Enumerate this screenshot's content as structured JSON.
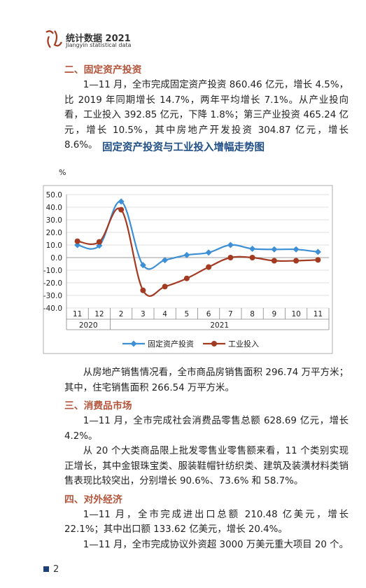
{
  "header": {
    "title": "统计数据 2021",
    "subtitle": "Jiangyin statistical data"
  },
  "sections": [
    {
      "heading": "二、固定资产投资",
      "paragraphs": [
        "1—11 月，全市完成固定资产投资 860.46 亿元，增长 4.5%，比 2019 年同期增长 14.7%，两年平均增长 7.1%。从产业投向看，工业投入 392.85 亿元，下降 1.8%；第三产业投资 465.24 亿元，增长 10.5%，其中房地产开发投资 304.87 亿元，增长 8.6%。"
      ]
    }
  ],
  "chart_data": {
    "type": "line",
    "title": "固定资产投资与工业投入增幅走势图",
    "y_label": "%",
    "categories": [
      "11",
      "12",
      "2",
      "3",
      "4",
      "5",
      "6",
      "7",
      "8",
      "9",
      "10",
      "11"
    ],
    "category_groups": [
      "2020",
      "2021"
    ],
    "series": [
      {
        "name": "固定资产投资",
        "color": "#3d8fd6",
        "marker": "diamond",
        "values": [
          10,
          9.5,
          44.5,
          -6,
          -2,
          2,
          4,
          10,
          7,
          6.5,
          6.5,
          4.5
        ]
      },
      {
        "name": "工业投入",
        "color": "#a33b22",
        "marker": "circle",
        "values": [
          13,
          12.5,
          38,
          -26,
          -23,
          -16.5,
          -7.5,
          0,
          0,
          -2.5,
          -2.5,
          -1.8
        ]
      }
    ],
    "ylim": [
      -40,
      50
    ],
    "yticks": [
      {
        "value": -40,
        "label": "-40.0"
      },
      {
        "value": -30,
        "label": "-30.0"
      },
      {
        "value": -20,
        "label": "-20.0"
      },
      {
        "value": -10,
        "label": "-10.0"
      },
      {
        "value": 0,
        "label": "0.0"
      },
      {
        "value": 10,
        "label": "10.0"
      },
      {
        "value": 20,
        "label": "20.0"
      },
      {
        "value": 30,
        "label": "30.0"
      },
      {
        "value": 40,
        "label": "40.0"
      },
      {
        "value": 50,
        "label": "50.0"
      }
    ],
    "grid": true,
    "legend": "bottom"
  },
  "sections_after": [
    {
      "heading": null,
      "paragraphs": [
        "从房地产销售情况看，全市商品房销售面积 296.74 万平方米；其中，住宅销售面积 266.54 万平方米。"
      ]
    },
    {
      "heading": "三、消费品市场",
      "paragraphs": [
        "1—11 月，全市完成社会消费品零售总额 628.69 亿元，增长 4.2%。",
        "从 20 个大类商品限上批发零售业零售额来看，11 个类别实现正增长，其中金银珠宝类、服装鞋帽针纺织类、建筑及装潢材料类销售表现比较突出，分别增长 90.6%、73.6% 和 58.7%。"
      ]
    },
    {
      "heading": "四、对外经济",
      "paragraphs": [
        "1—11 月，全市完成进出口总额 210.48 亿美元，增长 22.1%；其中出口额 133.62 亿美元，增长 20.4%。",
        "1—11 月，全市完成协议外资超 3000 万美元重大项目 20 个。"
      ]
    }
  ],
  "footer": {
    "page": "2"
  }
}
